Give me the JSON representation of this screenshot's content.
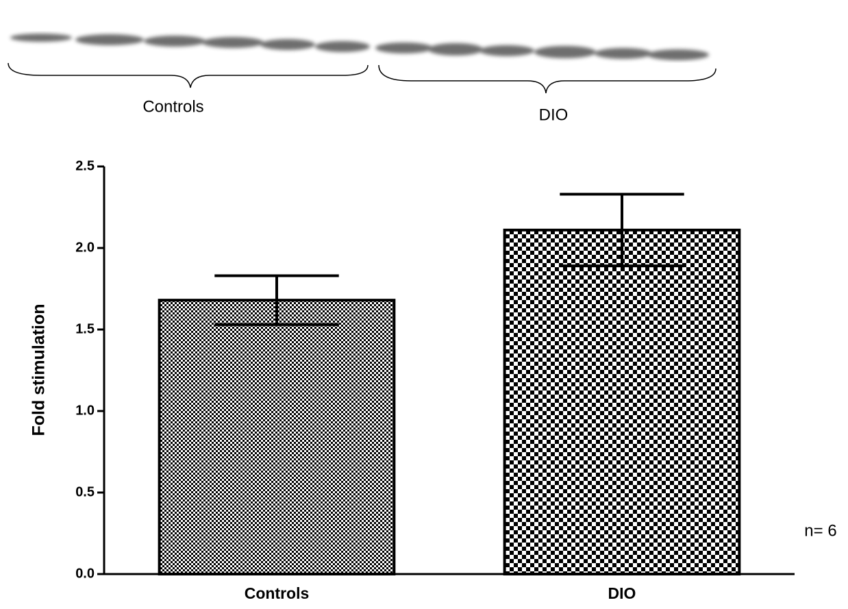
{
  "chart_data": {
    "type": "bar",
    "categories": [
      "Controls",
      "DIO"
    ],
    "values": [
      1.68,
      2.11
    ],
    "errors": [
      0.15,
      0.22
    ],
    "ylabel": "Fold stimulation",
    "ylim": [
      0,
      2.5
    ],
    "yticks": [
      {
        "value": 0,
        "label": "0.0"
      },
      {
        "value": 0.5,
        "label": "0.5"
      },
      {
        "value": 1,
        "label": "1.0"
      },
      {
        "value": 1.5,
        "label": "1.5"
      },
      {
        "value": 2,
        "label": "2.0"
      },
      {
        "value": 2.5,
        "label": "2.5"
      }
    ],
    "annotation": "n= 6",
    "blot_labels": [
      "Controls",
      "DIO"
    ]
  }
}
